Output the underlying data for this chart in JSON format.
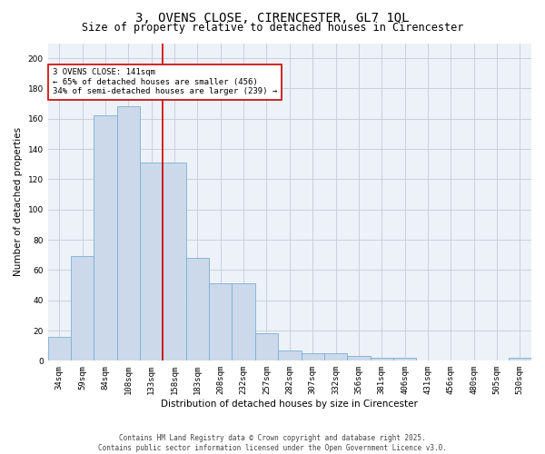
{
  "title": "3, OVENS CLOSE, CIRENCESTER, GL7 1QL",
  "subtitle": "Size of property relative to detached houses in Cirencester",
  "xlabel": "Distribution of detached houses by size in Cirencester",
  "ylabel": "Number of detached properties",
  "categories": [
    "34sqm",
    "59sqm",
    "84sqm",
    "108sqm",
    "133sqm",
    "158sqm",
    "183sqm",
    "208sqm",
    "232sqm",
    "257sqm",
    "282sqm",
    "307sqm",
    "332sqm",
    "356sqm",
    "381sqm",
    "406sqm",
    "431sqm",
    "456sqm",
    "480sqm",
    "505sqm",
    "530sqm"
  ],
  "values": [
    16,
    69,
    162,
    168,
    131,
    131,
    68,
    51,
    51,
    18,
    7,
    5,
    5,
    3,
    2,
    2,
    0,
    0,
    0,
    0,
    2
  ],
  "bar_color": "#ccd9ea",
  "bar_edge_color": "#7bafd4",
  "redline_x": 4.5,
  "annotation_line1": "3 OVENS CLOSE: 141sqm",
  "annotation_line2": "← 65% of detached houses are smaller (456)",
  "annotation_line3": "34% of semi-detached houses are larger (239) →",
  "annotation_box_color": "#ffffff",
  "annotation_box_edge": "#cc0000",
  "redline_color": "#cc0000",
  "ylim": [
    0,
    210
  ],
  "yticks": [
    0,
    20,
    40,
    60,
    80,
    100,
    120,
    140,
    160,
    180,
    200
  ],
  "grid_color": "#c8d0dc",
  "bg_color": "#edf2f8",
  "footer_line1": "Contains HM Land Registry data © Crown copyright and database right 2025.",
  "footer_line2": "Contains public sector information licensed under the Open Government Licence v3.0.",
  "title_fontsize": 10,
  "subtitle_fontsize": 8.5,
  "axis_label_fontsize": 7.5,
  "tick_fontsize": 6.5,
  "annotation_fontsize": 6.5,
  "footer_fontsize": 5.5
}
